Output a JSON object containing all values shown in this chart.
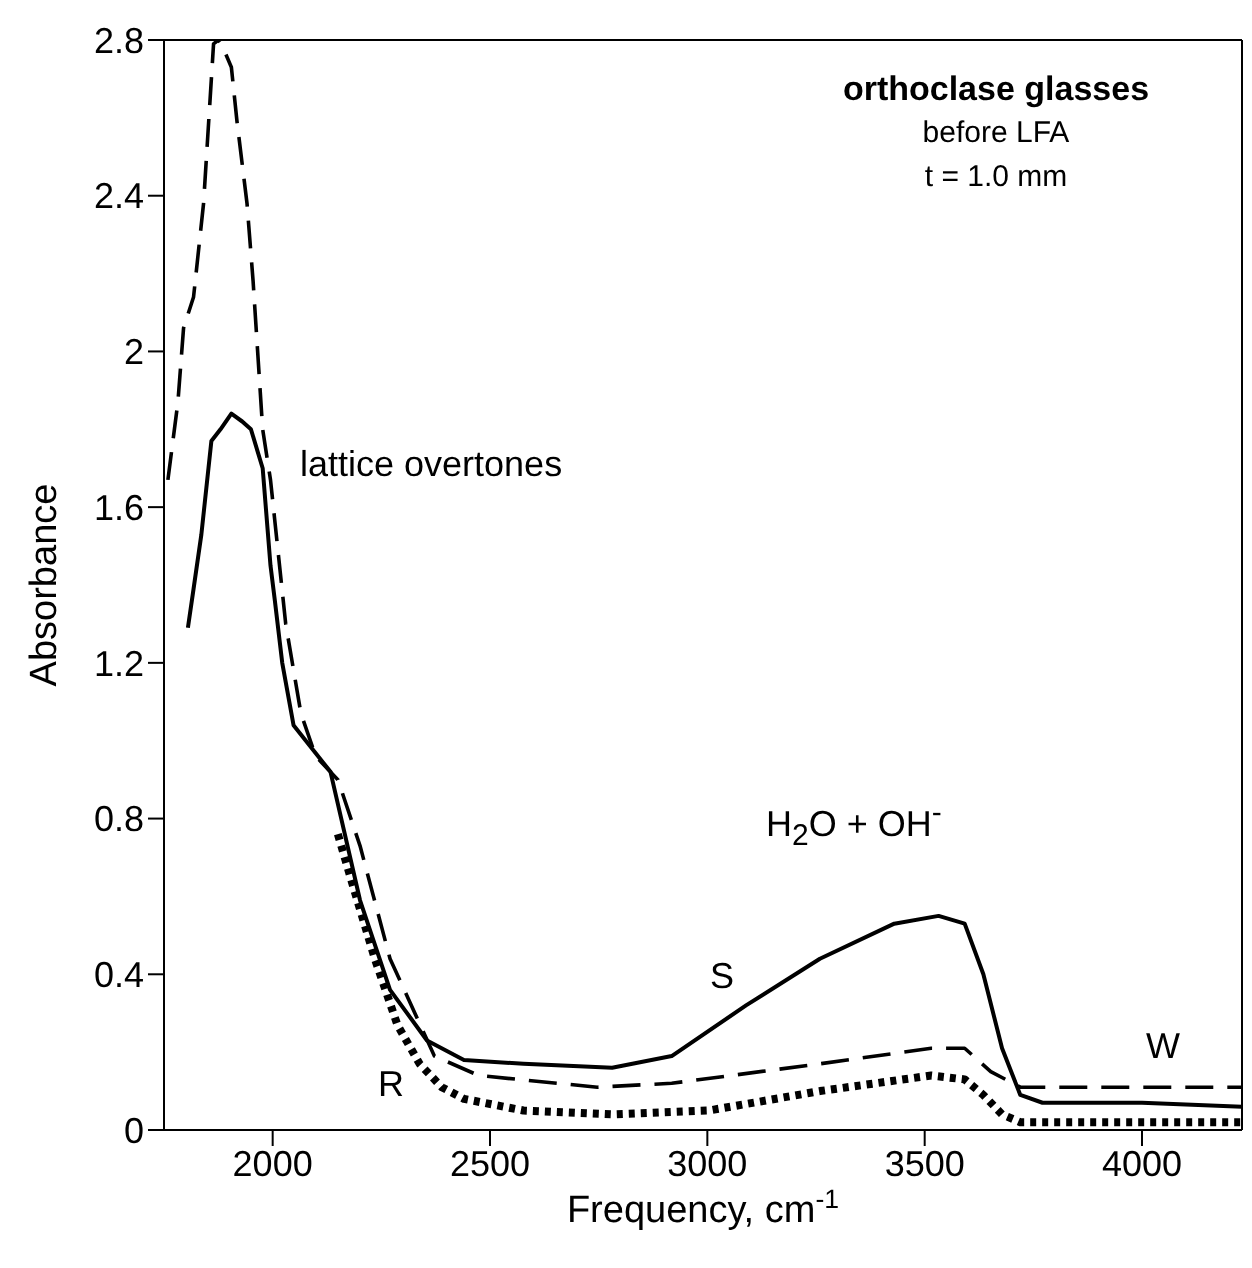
{
  "chart_data": {
    "type": "line",
    "title": "orthoclase glasses",
    "subtitle": "before LFA",
    "xlabel": "Frequency, cm$^{-1}$",
    "ylabel": "Absorbance",
    "annotations": [
      "t = 1.0 mm",
      "lattice overtones",
      "H$_{2}$O + OH$^{-}$"
    ],
    "series": [
      {
        "name": "W",
        "color": "#000000",
        "line_style": "dashed",
        "x": [
          1759,
          1782,
          1795,
          1818,
          1841,
          1864,
          1875,
          1882,
          1905,
          1918,
          1941,
          1955,
          1977,
          1995,
          2030,
          2065,
          2099,
          2150,
          2201,
          2270,
          2372,
          2474,
          2747,
          2918,
          3259,
          3515,
          3592,
          3652,
          3720,
          4230
        ],
        "values": [
          1.67,
          1.87,
          2.06,
          2.14,
          2.38,
          2.79,
          2.8,
          2.79,
          2.73,
          2.59,
          2.38,
          2.18,
          1.8,
          1.67,
          1.3,
          1.07,
          0.96,
          0.9,
          0.73,
          0.44,
          0.19,
          0.14,
          0.11,
          0.12,
          0.17,
          0.21,
          0.21,
          0.15,
          0.11,
          0.11
        ]
      },
      {
        "name": "S",
        "color": "#000000",
        "line_style": "solid",
        "x": [
          1805,
          1818,
          1836,
          1859,
          1880,
          1905,
          1930,
          1950,
          1977,
          1995,
          2005,
          2022,
          2048,
          2133,
          2201,
          2270,
          2355,
          2440,
          2577,
          2781,
          2918,
          3089,
          3259,
          3430,
          3532,
          3592,
          3635,
          3678,
          3720,
          3771,
          4000,
          4230
        ],
        "values": [
          1.29,
          1.39,
          1.53,
          1.77,
          1.8,
          1.84,
          1.82,
          1.8,
          1.7,
          1.45,
          1.36,
          1.2,
          1.04,
          0.92,
          0.59,
          0.36,
          0.23,
          0.18,
          0.17,
          0.16,
          0.19,
          0.32,
          0.44,
          0.53,
          0.55,
          0.53,
          0.4,
          0.21,
          0.09,
          0.07,
          0.07,
          0.06
        ]
      },
      {
        "name": "R",
        "color": "#000000",
        "line_style": "dotted",
        "x": [
          2150,
          2184,
          2235,
          2287,
          2338,
          2389,
          2440,
          2577,
          2781,
          3003,
          3259,
          3515,
          3592,
          3635,
          3678,
          3720,
          4230
        ],
        "values": [
          0.76,
          0.63,
          0.44,
          0.27,
          0.17,
          0.11,
          0.08,
          0.05,
          0.04,
          0.05,
          0.1,
          0.14,
          0.13,
          0.09,
          0.04,
          0.02,
          0.02
        ]
      }
    ],
    "xlim": [
      1750,
      4230
    ],
    "ylim": [
      0,
      2.8
    ],
    "xticks": [
      2000,
      2500,
      3000,
      3500,
      4000
    ],
    "yticks": [
      0,
      0.4,
      0.8,
      1.2,
      1.6,
      2,
      2.4,
      2.8
    ],
    "marker": "none"
  }
}
